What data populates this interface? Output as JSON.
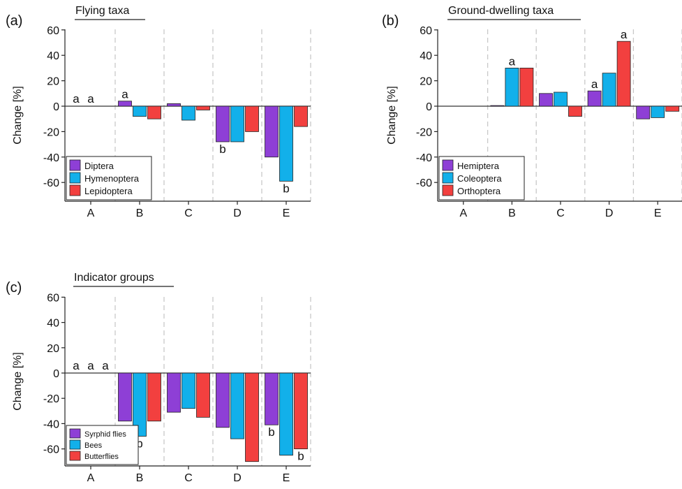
{
  "colors": {
    "series": [
      "#8e3fd6",
      "#12b0ea",
      "#f2403f"
    ],
    "axis": "#222222",
    "gridline": "#c8c8c8"
  },
  "chart_data": [
    {
      "type": "bar",
      "panel_label": "(a)",
      "title": "Flying taxa",
      "ylabel": "Change [%]",
      "xlabel": "",
      "categories": [
        "A",
        "B",
        "C",
        "D",
        "E"
      ],
      "ylim": [
        -75,
        60
      ],
      "yticks": [
        60,
        40,
        20,
        0,
        -20,
        -40,
        -60
      ],
      "grid": "dashed vertical separators",
      "legend_position": "bottom-left",
      "series": [
        {
          "name": "Diptera",
          "values": [
            0,
            4,
            2,
            -28,
            -40
          ]
        },
        {
          "name": "Hymenoptera",
          "values": [
            0,
            -8,
            -11,
            -28,
            -59
          ]
        },
        {
          "name": "Lepidoptera",
          "values": [
            0,
            -10,
            -3,
            -20,
            -16
          ]
        }
      ],
      "annotations": [
        {
          "text": "a",
          "category": "A",
          "series": 0,
          "value": 0
        },
        {
          "text": "a",
          "category": "A",
          "series": 1,
          "value": 0
        },
        {
          "text": "a",
          "category": "B",
          "series": 0,
          "value": 4
        },
        {
          "text": "b",
          "category": "D",
          "series": 0,
          "value": -28
        },
        {
          "text": "b",
          "category": "E",
          "series": 1,
          "value": -59
        }
      ]
    },
    {
      "type": "bar",
      "panel_label": "(b)",
      "title": "Ground-dwelling taxa",
      "ylabel": "Change [%]",
      "xlabel": "",
      "categories": [
        "A",
        "B",
        "C",
        "D",
        "E"
      ],
      "ylim": [
        -75,
        60
      ],
      "yticks": [
        60,
        40,
        20,
        0,
        -20,
        -40,
        -60
      ],
      "grid": "dashed vertical separators",
      "legend_position": "bottom-left",
      "series": [
        {
          "name": "Hemiptera",
          "values": [
            0,
            0.5,
            10,
            12,
            -10
          ]
        },
        {
          "name": "Coleoptera",
          "values": [
            0,
            30,
            11,
            26,
            -9
          ]
        },
        {
          "name": "Orthoptera",
          "values": [
            0,
            30,
            -8,
            51,
            -4
          ]
        }
      ],
      "annotations": [
        {
          "text": "a",
          "category": "B",
          "series": 1,
          "value": 30
        },
        {
          "text": "a",
          "category": "D",
          "series": 0,
          "value": 12
        },
        {
          "text": "a",
          "category": "D",
          "series": 2,
          "value": 51
        }
      ]
    },
    {
      "type": "bar",
      "panel_label": "(c)",
      "title": "Indicator groups",
      "ylabel": "Change [%]",
      "xlabel": "",
      "categories": [
        "A",
        "B",
        "C",
        "D",
        "E"
      ],
      "ylim": [
        -75,
        60
      ],
      "yticks": [
        60,
        40,
        20,
        0,
        -20,
        -40,
        -60
      ],
      "grid": "dashed vertical separators",
      "legend_position": "bottom-left",
      "series": [
        {
          "name": "Syrphid flies",
          "values": [
            0,
            -38,
            -31,
            -43,
            -41
          ]
        },
        {
          "name": "Bees",
          "values": [
            0,
            -50,
            -28,
            -52,
            -65
          ]
        },
        {
          "name": "Butterflies",
          "values": [
            0,
            -38,
            -35,
            -70,
            -60
          ]
        }
      ],
      "annotations": [
        {
          "text": "a",
          "category": "A",
          "series": 0,
          "value": 0
        },
        {
          "text": "a",
          "category": "A",
          "series": 1,
          "value": 0
        },
        {
          "text": "a",
          "category": "A",
          "series": 2,
          "value": 0
        },
        {
          "text": "b",
          "category": "B",
          "series": 1,
          "value": -50
        },
        {
          "text": "b",
          "category": "E",
          "series": 0,
          "value": -41
        },
        {
          "text": "b",
          "category": "E",
          "series": 2,
          "value": -60
        }
      ]
    }
  ]
}
